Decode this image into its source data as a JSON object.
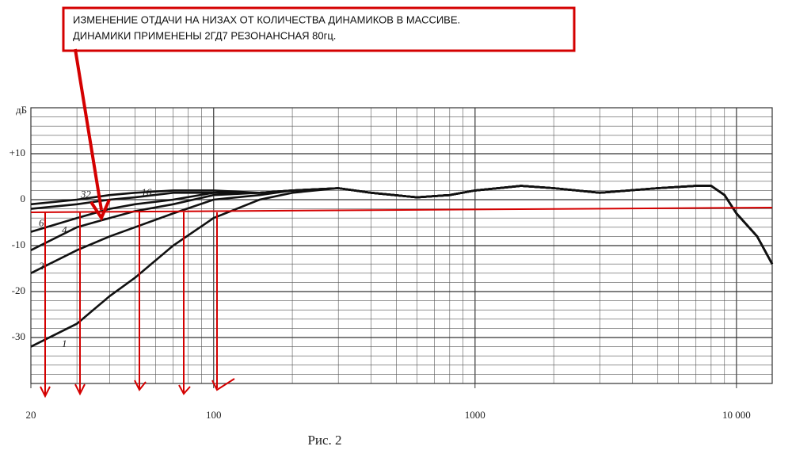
{
  "chart_data": {
    "type": "line",
    "annotation": [
      "ИЗМЕНЕНИЕ ОТДАЧИ НА НИЗАХ ОТ КОЛИЧЕСТВА ДИНАМИКОВ В МАССИВЕ.",
      "ДИНАМИКИ ПРИМЕНЕНЫ 2ГД7 РЕЗОНАНСНАЯ 80гц."
    ],
    "y_label": "дБ",
    "caption": "Рис. 2",
    "x": [
      20,
      30,
      40,
      50,
      70,
      100,
      150,
      200,
      300,
      400,
      600,
      800,
      1000,
      1500,
      2000,
      3000,
      5000,
      7000,
      8000,
      9000,
      10000,
      12000,
      13700
    ],
    "series": [
      {
        "name": "1",
        "color": "#111",
        "values": [
          -32,
          -27,
          -21,
          -17,
          -10,
          -4,
          0,
          1.5,
          2.5,
          1.5,
          0.5,
          1,
          2,
          3,
          2.5,
          1.5,
          2.5,
          3,
          3,
          1,
          -3,
          -8,
          -14
        ]
      },
      {
        "name": "2",
        "color": "#111",
        "values": [
          -16,
          -11,
          -8,
          -6,
          -3,
          0,
          1,
          2,
          2.5,
          1.5,
          0.5,
          1,
          2,
          3,
          2.5,
          1.5,
          2.5,
          3,
          3,
          1,
          -3,
          -8,
          -14
        ]
      },
      {
        "name": "4",
        "color": "#111",
        "values": [
          -11,
          -6,
          -4,
          -2.5,
          -1,
          1,
          1.5,
          2,
          2.5,
          1.5,
          0.5,
          1,
          2,
          3,
          2.5,
          1.5,
          2.5,
          3,
          3,
          1,
          -3,
          -8,
          -14
        ]
      },
      {
        "name": "6",
        "color": "#111",
        "values": [
          -7,
          -4,
          -2,
          -1,
          0,
          1.5,
          1.5,
          2,
          2.5,
          1.5,
          0.5,
          1,
          2,
          3,
          2.5,
          1.5,
          2.5,
          3,
          3,
          1,
          -3,
          -8,
          -14
        ]
      },
      {
        "name": "16",
        "color": "#111",
        "values": [
          -2,
          -1,
          0,
          0.5,
          1.5,
          1.5,
          1.5,
          2,
          2.5,
          1.5,
          0.5,
          1,
          2,
          3,
          2.5,
          1.5,
          2.5,
          3,
          3,
          1,
          -3,
          -8,
          -14
        ]
      },
      {
        "name": "32",
        "color": "#111",
        "values": [
          -1,
          0,
          1,
          1.5,
          2,
          2,
          1.5,
          2,
          2.5,
          1.5,
          0.5,
          1,
          2,
          3,
          2.5,
          1.5,
          2.5,
          3,
          3,
          1,
          -3,
          -8,
          -14
        ]
      }
    ],
    "xscale": "log",
    "xlim": [
      20,
      13700
    ],
    "xticks": [
      20,
      100,
      1000,
      {
        "value": 10000,
        "label": "10 000"
      }
    ],
    "ylim": [
      -40,
      20
    ],
    "yticks": [
      {
        "value": 10,
        "label": "+10"
      },
      0,
      -10,
      -20,
      -30
    ],
    "grid": true
  }
}
